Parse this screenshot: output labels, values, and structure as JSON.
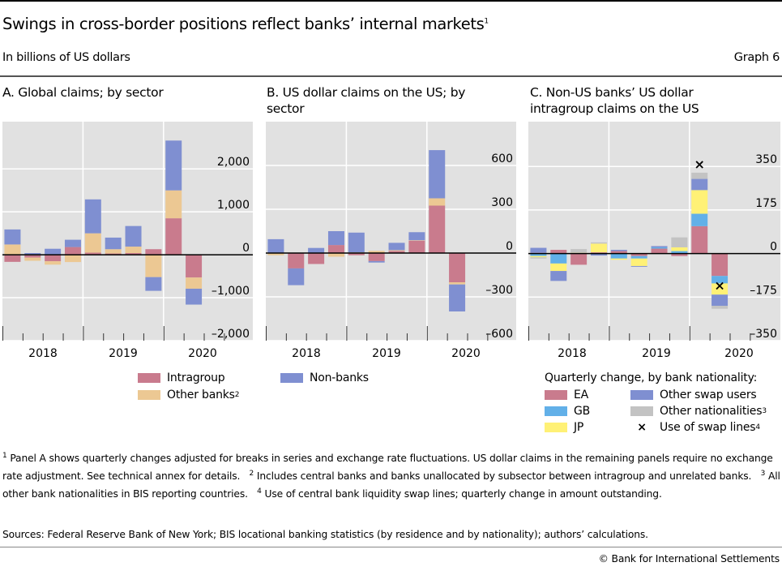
{
  "header": {
    "title": "Swings in cross-border positions reflect banks’ internal markets",
    "title_sup": "1",
    "unit": "In billions of US dollars",
    "graph_no": "Graph 6"
  },
  "colors": {
    "Intragroup": "#c97b8d",
    "Other banks": "#ecc893",
    "Non-banks": "#7f8fd1",
    "EA": "#c97b8d",
    "GB": "#62b0e8",
    "JP": "#fff176",
    "Other swap users": "#7f8fd1",
    "Other nationalities": "#c3c3c3",
    "background": "#e1e1e1"
  },
  "chart_data": [
    {
      "type": "bar",
      "stacked": true,
      "title": "A. Global claims; by sector",
      "categories": [
        "2018Q1",
        "2018Q2",
        "2018Q3",
        "2018Q4",
        "2019Q1",
        "2019Q2",
        "2019Q3",
        "2019Q4",
        "2020Q1",
        "2020Q2"
      ],
      "year_labels": [
        "2018",
        "2019",
        "2020"
      ],
      "ylim": [
        -2000,
        3100
      ],
      "ticks": [
        2000,
        1000,
        0,
        -1000,
        -2000
      ],
      "tick_labels": [
        "2,000",
        "1,000",
        "0",
        "–1,000",
        "–2,000"
      ],
      "series": [
        {
          "name": "Intragroup",
          "values": [
            -165,
            -65,
            -150,
            180,
            50,
            30,
            40,
            130,
            850,
            -530
          ]
        },
        {
          "name": "Other banks",
          "values": [
            240,
            -75,
            -80,
            -170,
            450,
            100,
            150,
            -520,
            650,
            -260
          ]
        },
        {
          "name": "Non-banks",
          "values": [
            350,
            40,
            140,
            170,
            790,
            270,
            480,
            -320,
            1160,
            -370
          ]
        }
      ]
    },
    {
      "type": "bar",
      "stacked": true,
      "title": "B. US dollar claims on the US; by sector",
      "categories": [
        "2018Q1",
        "2018Q2",
        "2018Q3",
        "2018Q4",
        "2019Q1",
        "2019Q2",
        "2019Q3",
        "2019Q4",
        "2020Q1",
        "2020Q2"
      ],
      "year_labels": [
        "2018",
        "2019",
        "2020"
      ],
      "ylim": [
        -600,
        900
      ],
      "ticks": [
        600,
        300,
        0,
        -300,
        -600
      ],
      "tick_labels": [
        "600",
        "300",
        "0",
        "–300",
        "–600"
      ],
      "series": [
        {
          "name": "Intragroup",
          "values": [
            -3,
            -105,
            -75,
            55,
            -15,
            -55,
            15,
            85,
            325,
            -200
          ]
        },
        {
          "name": "Other banks",
          "values": [
            -12,
            0,
            0,
            -25,
            5,
            15,
            5,
            3,
            50,
            -15
          ]
        },
        {
          "name": "Non-banks",
          "values": [
            95,
            -115,
            35,
            95,
            135,
            -10,
            50,
            55,
            330,
            -185
          ]
        }
      ]
    },
    {
      "type": "bar",
      "stacked": true,
      "title": "C. Non-US banks’ US dollar intragroup claims on the US",
      "categories": [
        "2018Q1",
        "2018Q2",
        "2018Q3",
        "2018Q4",
        "2019Q1",
        "2019Q2",
        "2019Q3",
        "2019Q4",
        "2020Q1",
        "2020Q2"
      ],
      "year_labels": [
        "2018",
        "2019",
        "2020"
      ],
      "ylim": [
        -350,
        530
      ],
      "ticks": [
        350,
        175,
        0,
        -175,
        -350
      ],
      "tick_labels": [
        "350",
        "175",
        "0",
        "–175",
        "–350"
      ],
      "series": [
        {
          "name": "EA",
          "values": [
            3,
            15,
            -45,
            5,
            10,
            -10,
            20,
            -10,
            110,
            -90
          ]
        },
        {
          "name": "GB",
          "values": [
            -10,
            -40,
            0,
            0,
            -20,
            -10,
            5,
            10,
            50,
            -30
          ]
        },
        {
          "name": "JP",
          "values": [
            -5,
            -30,
            3,
            35,
            -5,
            -30,
            0,
            15,
            95,
            -45
          ]
        },
        {
          "name": "Other swap users",
          "values": [
            20,
            -40,
            0,
            -8,
            5,
            -3,
            5,
            0,
            45,
            -45
          ]
        },
        {
          "name": "Other nationalities",
          "values": [
            -5,
            0,
            15,
            5,
            0,
            0,
            0,
            40,
            25,
            -12
          ]
        }
      ],
      "markers": {
        "name": "Use of swap lines",
        "values": [
          null,
          null,
          null,
          null,
          null,
          null,
          null,
          null,
          358,
          -130
        ]
      }
    }
  ],
  "legend_ab": [
    {
      "label": "Intragroup"
    },
    {
      "label": "Other banks",
      "sup": "2"
    },
    {
      "label": "Non-banks"
    }
  ],
  "legend_c": {
    "heading": "Quarterly change, by bank nationality:",
    "items": [
      {
        "label": "EA"
      },
      {
        "label": "Other swap users"
      },
      {
        "label": "GB"
      },
      {
        "label": "Other nationalities",
        "sup": "3"
      },
      {
        "label": "JP"
      },
      {
        "label": "Use of swap lines",
        "sup": "4",
        "marker": "×"
      }
    ]
  },
  "footnotes": {
    "n1": "Panel A shows quarterly changes adjusted for breaks in series and exchange rate fluctuations. US dollar claims in the remaining panels require no exchange rate adjustment. See technical annex for details.",
    "n2": "Includes central banks and banks unallocated by subsector between intragroup and unrelated banks.",
    "n3": "All other bank nationalities in BIS reporting countries.",
    "n4": "Use of central bank liquidity swap lines; quarterly change in amount outstanding.",
    "m1": "1",
    "m2": "2",
    "m3": "3",
    "m4": "4"
  },
  "sources": "Sources: Federal Reserve Bank of New York; BIS locational banking statistics (by residence and by nationality); authors’ calculations.",
  "copyright": "© Bank for International Settlements"
}
